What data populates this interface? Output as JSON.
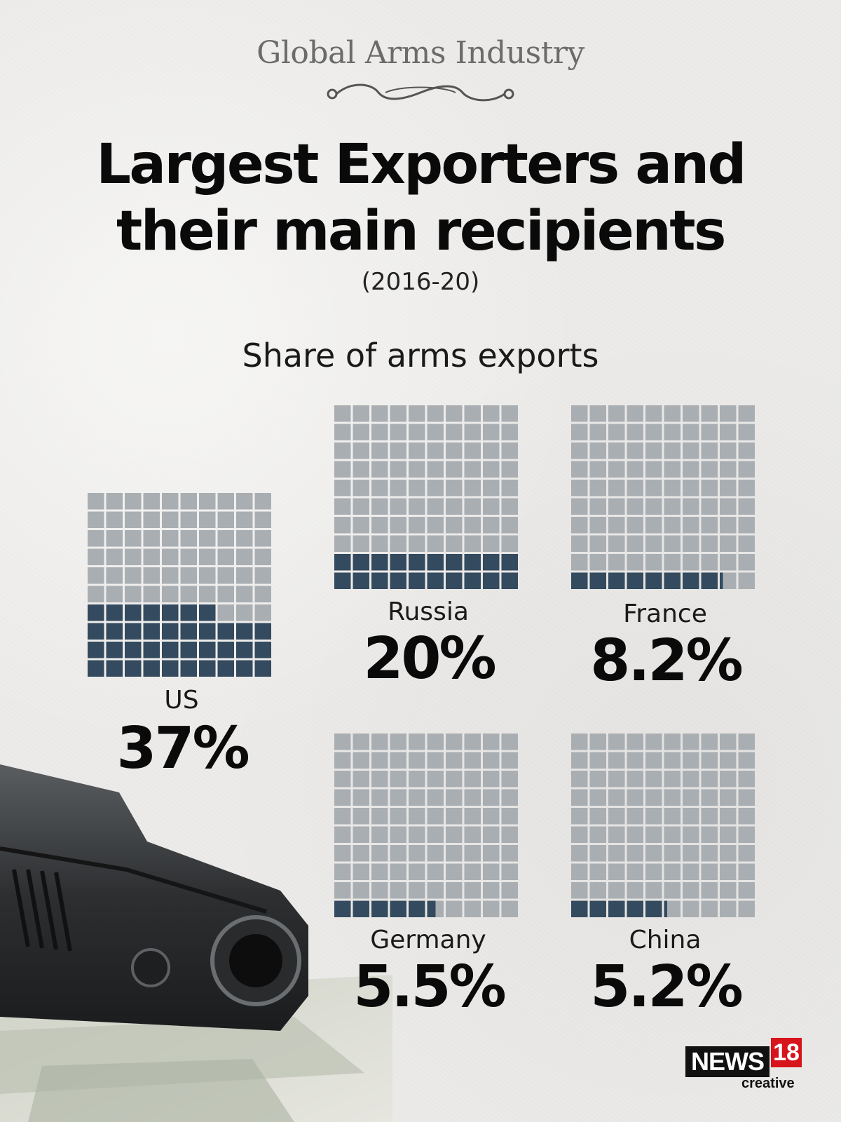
{
  "header": {
    "kicker": "Global Arms Industry",
    "title_line1": "Largest Exporters and",
    "title_line2": "their main recipients",
    "period": "(2016-20)",
    "subtitle": "Share of arms exports"
  },
  "colors": {
    "filled": "#344a5e",
    "empty": "#a9aeb2",
    "background": "#ecebe9"
  },
  "chart_data": {
    "type": "waffle",
    "title": "Share of arms exports",
    "unit": "%",
    "grid": "10x10",
    "series": [
      {
        "name": "US",
        "value": 37,
        "label": "37%"
      },
      {
        "name": "Russia",
        "value": 20,
        "label": "20%"
      },
      {
        "name": "France",
        "value": 8.2,
        "label": "8.2%"
      },
      {
        "name": "Germany",
        "value": 5.5,
        "label": "5.5%"
      },
      {
        "name": "China",
        "value": 5.2,
        "label": "5.2%"
      }
    ]
  },
  "branding": {
    "logo_word": "NEWS",
    "logo_number": "18",
    "logo_sub": "creative"
  }
}
